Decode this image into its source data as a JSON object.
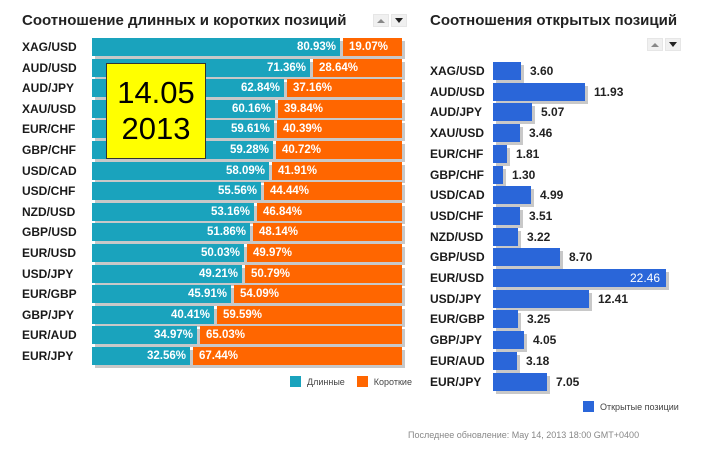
{
  "left_panel": {
    "title": "Соотношение длинных и коротких позиций",
    "sort_up_icon": "triangle-up",
    "sort_down_icon": "triangle-down",
    "legend": {
      "long_label": "Длинные",
      "short_label": "Короткие",
      "long_color": "#1aa3bd",
      "short_color": "#ff6600"
    }
  },
  "right_panel": {
    "title": "Соотношения открытых позиций",
    "sort_up_icon": "triangle-up",
    "sort_down_icon": "triangle-down",
    "legend": {
      "label": "Открытые позиции",
      "color": "#2a66d9"
    }
  },
  "date_overlay": {
    "line1": "14.05",
    "line2": "2013"
  },
  "footer": "Последнее обновление: May 14, 2013 18:00 GMT+0400",
  "chart_data": [
    {
      "type": "bar",
      "orientation": "horizontal",
      "stacked": true,
      "title": "Соотношение длинных и коротких позиций",
      "categories": [
        "XAG/USD",
        "AUD/USD",
        "AUD/JPY",
        "XAU/USD",
        "EUR/CHF",
        "GBP/CHF",
        "USD/CAD",
        "USD/CHF",
        "NZD/USD",
        "GBP/USD",
        "EUR/USD",
        "USD/JPY",
        "EUR/GBP",
        "GBP/JPY",
        "EUR/AUD",
        "EUR/JPY"
      ],
      "series": [
        {
          "name": "Длинные",
          "color": "#1aa3bd",
          "values": [
            80.93,
            71.36,
            62.84,
            60.16,
            59.61,
            59.28,
            58.09,
            55.56,
            53.16,
            51.86,
            50.03,
            49.21,
            45.91,
            40.41,
            34.97,
            32.56
          ]
        },
        {
          "name": "Короткие",
          "color": "#ff6600",
          "values": [
            19.07,
            28.64,
            37.16,
            39.84,
            40.39,
            40.72,
            41.91,
            44.44,
            46.84,
            48.14,
            49.97,
            50.79,
            54.09,
            59.59,
            65.03,
            67.44
          ]
        }
      ],
      "value_suffix": "%",
      "xlim": [
        0,
        100
      ],
      "legend_position": "bottom-right",
      "grid": false
    },
    {
      "type": "bar",
      "orientation": "horizontal",
      "title": "Соотношения открытых позиций",
      "categories": [
        "XAG/USD",
        "AUD/USD",
        "AUD/JPY",
        "XAU/USD",
        "EUR/CHF",
        "GBP/CHF",
        "USD/CAD",
        "USD/CHF",
        "NZD/USD",
        "GBP/USD",
        "EUR/USD",
        "USD/JPY",
        "EUR/GBP",
        "GBP/JPY",
        "EUR/AUD",
        "EUR/JPY"
      ],
      "series": [
        {
          "name": "Открытые позиции",
          "color": "#2a66d9",
          "values": [
            3.6,
            11.93,
            5.07,
            3.46,
            1.81,
            1.3,
            4.99,
            3.51,
            3.22,
            8.7,
            22.46,
            12.41,
            3.25,
            4.05,
            3.18,
            7.05
          ]
        }
      ],
      "value_labels": [
        "3.60",
        "11.93",
        "5.07",
        "3.46",
        "1.81",
        "1.30",
        "4.99",
        "3.51",
        "3.22",
        "8.70",
        "22.46",
        "12.41",
        "3.25",
        "4.05",
        "3.18",
        "7.05"
      ],
      "legend_position": "bottom-right",
      "grid": false
    }
  ]
}
